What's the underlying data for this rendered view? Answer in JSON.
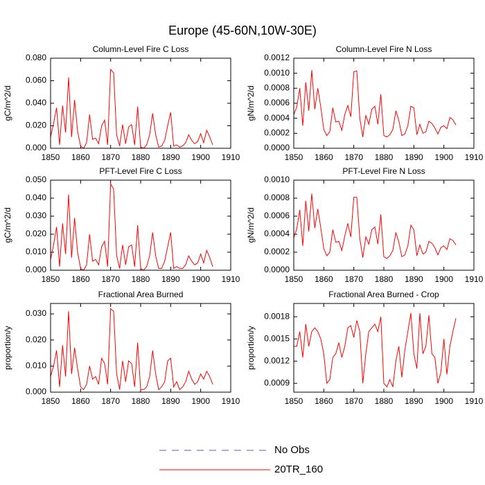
{
  "title": "Europe (45-60N,10W-30E)",
  "legend": [
    {
      "name": "No Obs",
      "color": "#5a5ac8",
      "dash": true
    },
    {
      "name": "20TR_160",
      "color": "#ff0000",
      "dash": false
    }
  ],
  "chart_data": [
    {
      "type": "line",
      "title": "Column-Level Fire C Loss",
      "y_label": "gC/m^2/d",
      "x": [
        1850,
        1851,
        1852,
        1853,
        1854,
        1855,
        1856,
        1857,
        1858,
        1859,
        1860,
        1861,
        1862,
        1863,
        1864,
        1865,
        1866,
        1867,
        1868,
        1869,
        1870,
        1871,
        1872,
        1873,
        1874,
        1875,
        1876,
        1877,
        1878,
        1879,
        1880,
        1881,
        1882,
        1883,
        1884,
        1885,
        1886,
        1887,
        1888,
        1889,
        1890,
        1891,
        1892,
        1893,
        1894,
        1895,
        1896,
        1897,
        1898,
        1899,
        1900,
        1901,
        1902,
        1903,
        1904
      ],
      "series": [
        {
          "color": "#ff0000",
          "values": [
            0.01,
            0.022,
            0.036,
            0.003,
            0.038,
            0.014,
            0.063,
            0.01,
            0.043,
            0.015,
            0.002,
            0.0,
            0.005,
            0.03,
            0.008,
            0.009,
            0.004,
            0.02,
            0.025,
            0.003,
            0.07,
            0.067,
            0.012,
            0.002,
            0.021,
            0.004,
            0.019,
            0.021,
            0.003,
            0.037,
            0.001,
            0.0,
            0.003,
            0.012,
            0.031,
            0.012,
            0.001,
            0.002,
            0.007,
            0.02,
            0.032,
            0.002,
            0.003,
            0.001,
            0.002,
            0.005,
            0.012,
            0.007,
            0.004,
            0.006,
            0.013,
            0.005,
            0.016,
            0.01,
            0.003
          ]
        }
      ],
      "xlim": [
        1850,
        1910
      ],
      "xticks": [
        1850,
        1860,
        1870,
        1880,
        1890,
        1900,
        1910
      ],
      "ylim": [
        0,
        0.08
      ],
      "yticks": [
        {
          "value": 0,
          "label": "0.000"
        },
        {
          "value": 0.02,
          "label": "0.020"
        },
        {
          "value": 0.04,
          "label": "0.040"
        },
        {
          "value": 0.06,
          "label": "0.060"
        },
        {
          "value": 0.08,
          "label": "0.080"
        }
      ]
    },
    {
      "type": "line",
      "title": "Column-Level Fire N Loss",
      "y_label": "gN/m^2/d",
      "x": [
        1850,
        1851,
        1852,
        1853,
        1854,
        1855,
        1856,
        1857,
        1858,
        1859,
        1860,
        1861,
        1862,
        1863,
        1864,
        1865,
        1866,
        1867,
        1868,
        1869,
        1870,
        1871,
        1872,
        1873,
        1874,
        1875,
        1876,
        1877,
        1878,
        1879,
        1880,
        1881,
        1882,
        1883,
        1884,
        1885,
        1886,
        1887,
        1888,
        1889,
        1890,
        1891,
        1892,
        1893,
        1894,
        1895,
        1896,
        1897,
        1898,
        1899,
        1900,
        1901,
        1902,
        1903,
        1904
      ],
      "series": [
        {
          "color": "#ff0000",
          "values": [
            0.00045,
            0.00055,
            0.0008,
            0.0003,
            0.00088,
            0.0005,
            0.00104,
            0.00052,
            0.0008,
            0.00055,
            0.00025,
            0.00017,
            0.00022,
            0.00054,
            0.00035,
            0.00036,
            0.00024,
            0.00045,
            0.00057,
            0.00042,
            0.00102,
            0.00103,
            0.0004,
            0.00015,
            0.00044,
            0.00032,
            0.00052,
            0.00056,
            0.00032,
            0.00072,
            0.00017,
            0.00015,
            0.00018,
            0.00025,
            0.0005,
            0.00037,
            0.00017,
            0.00019,
            0.0003,
            0.00056,
            0.00054,
            0.00018,
            0.00032,
            0.0002,
            0.00022,
            0.00036,
            0.00033,
            0.00027,
            0.00019,
            0.00028,
            0.0003,
            0.00026,
            0.00041,
            0.00038,
            0.00031
          ]
        }
      ],
      "xlim": [
        1850,
        1910
      ],
      "xticks": [
        1850,
        1860,
        1870,
        1880,
        1890,
        1900,
        1910
      ],
      "ylim": [
        0,
        0.0012
      ],
      "yticks": [
        {
          "value": 0,
          "label": "0.0000"
        },
        {
          "value": 0.0002,
          "label": "0.0002"
        },
        {
          "value": 0.0004,
          "label": "0.0004"
        },
        {
          "value": 0.0006,
          "label": "0.0006"
        },
        {
          "value": 0.0008,
          "label": "0.0008"
        },
        {
          "value": 0.001,
          "label": "0.0010"
        },
        {
          "value": 0.0012,
          "label": "0.0012"
        }
      ]
    },
    {
      "type": "line",
      "title": "PFT-Level Fire C Loss",
      "y_label": "gC/m^2/d",
      "x": [
        1850,
        1851,
        1852,
        1853,
        1854,
        1855,
        1856,
        1857,
        1858,
        1859,
        1860,
        1861,
        1862,
        1863,
        1864,
        1865,
        1866,
        1867,
        1868,
        1869,
        1870,
        1871,
        1872,
        1873,
        1874,
        1875,
        1876,
        1877,
        1878,
        1879,
        1880,
        1881,
        1882,
        1883,
        1884,
        1885,
        1886,
        1887,
        1888,
        1889,
        1890,
        1891,
        1892,
        1893,
        1894,
        1895,
        1896,
        1897,
        1898,
        1899,
        1900,
        1901,
        1902,
        1903,
        1904
      ],
      "series": [
        {
          "color": "#ff0000",
          "values": [
            0.006,
            0.014,
            0.024,
            0.002,
            0.026,
            0.009,
            0.042,
            0.007,
            0.029,
            0.01,
            0.001,
            0.0,
            0.003,
            0.02,
            0.005,
            0.006,
            0.003,
            0.013,
            0.016,
            0.002,
            0.048,
            0.045,
            0.008,
            0.001,
            0.014,
            0.003,
            0.013,
            0.014,
            0.002,
            0.025,
            0.001,
            0.0,
            0.002,
            0.008,
            0.021,
            0.008,
            0.001,
            0.001,
            0.005,
            0.013,
            0.021,
            0.001,
            0.002,
            0.001,
            0.001,
            0.003,
            0.008,
            0.005,
            0.003,
            0.004,
            0.009,
            0.004,
            0.011,
            0.007,
            0.002
          ]
        }
      ],
      "xlim": [
        1850,
        1910
      ],
      "xticks": [
        1850,
        1860,
        1870,
        1880,
        1890,
        1900,
        1910
      ],
      "ylim": [
        0,
        0.05
      ],
      "yticks": [
        {
          "value": 0,
          "label": "0.000"
        },
        {
          "value": 0.01,
          "label": "0.010"
        },
        {
          "value": 0.02,
          "label": "0.020"
        },
        {
          "value": 0.03,
          "label": "0.030"
        },
        {
          "value": 0.04,
          "label": "0.040"
        },
        {
          "value": 0.05,
          "label": "0.050"
        }
      ]
    },
    {
      "type": "line",
      "title": "PFT-Level Fire N Loss",
      "y_label": "gN/m^2/d",
      "x": [
        1850,
        1851,
        1852,
        1853,
        1854,
        1855,
        1856,
        1857,
        1858,
        1859,
        1860,
        1861,
        1862,
        1863,
        1864,
        1865,
        1866,
        1867,
        1868,
        1869,
        1870,
        1871,
        1872,
        1873,
        1874,
        1875,
        1876,
        1877,
        1878,
        1879,
        1880,
        1881,
        1882,
        1883,
        1884,
        1885,
        1886,
        1887,
        1888,
        1889,
        1890,
        1891,
        1892,
        1893,
        1894,
        1895,
        1896,
        1897,
        1898,
        1899,
        1900,
        1901,
        1902,
        1903,
        1904
      ],
      "series": [
        {
          "color": "#ff0000",
          "values": [
            0.00036,
            0.00046,
            0.00067,
            0.00027,
            0.00077,
            0.00043,
            0.00085,
            0.00047,
            0.00068,
            0.00047,
            0.00024,
            0.00016,
            0.0002,
            0.00045,
            0.00031,
            0.00032,
            0.00022,
            0.00038,
            0.00052,
            0.00037,
            0.00081,
            0.00081,
            0.00035,
            0.00014,
            0.00037,
            0.00029,
            0.00045,
            0.00048,
            0.00029,
            0.00062,
            0.00015,
            0.00013,
            0.00016,
            0.00022,
            0.00042,
            0.00031,
            0.00015,
            0.00017,
            0.00027,
            0.0005,
            0.00045,
            0.00016,
            0.00028,
            0.00018,
            0.0002,
            0.00032,
            0.0003,
            0.00025,
            0.00017,
            0.00025,
            0.00027,
            0.00023,
            0.00035,
            0.00033,
            0.00028
          ]
        }
      ],
      "xlim": [
        1850,
        1910
      ],
      "xticks": [
        1850,
        1860,
        1870,
        1880,
        1890,
        1900,
        1910
      ],
      "ylim": [
        0,
        0.001
      ],
      "yticks": [
        {
          "value": 0,
          "label": "0.0000"
        },
        {
          "value": 0.0002,
          "label": "0.0002"
        },
        {
          "value": 0.0004,
          "label": "0.0004"
        },
        {
          "value": 0.0006,
          "label": "0.0006"
        },
        {
          "value": 0.0008,
          "label": "0.0008"
        },
        {
          "value": 0.001,
          "label": "0.0010"
        }
      ]
    },
    {
      "type": "line",
      "title": "Fractional Area Burned",
      "y_label": "proportion/y",
      "x": [
        1850,
        1851,
        1852,
        1853,
        1854,
        1855,
        1856,
        1857,
        1858,
        1859,
        1860,
        1861,
        1862,
        1863,
        1864,
        1865,
        1866,
        1867,
        1868,
        1869,
        1870,
        1871,
        1872,
        1873,
        1874,
        1875,
        1876,
        1877,
        1878,
        1879,
        1880,
        1881,
        1882,
        1883,
        1884,
        1885,
        1886,
        1887,
        1888,
        1889,
        1890,
        1891,
        1892,
        1893,
        1894,
        1895,
        1896,
        1897,
        1898,
        1899,
        1900,
        1901,
        1902,
        1903,
        1904
      ],
      "series": [
        {
          "color": "#ff0000",
          "values": [
            0.006,
            0.01,
            0.016,
            0.002,
            0.018,
            0.006,
            0.031,
            0.007,
            0.017,
            0.009,
            0.002,
            0.001,
            0.003,
            0.01,
            0.005,
            0.006,
            0.003,
            0.013,
            0.011,
            0.003,
            0.032,
            0.031,
            0.007,
            0.001,
            0.012,
            0.004,
            0.012,
            0.011,
            0.002,
            0.019,
            0.001,
            0.001,
            0.002,
            0.006,
            0.016,
            0.007,
            0.001,
            0.002,
            0.004,
            0.012,
            0.013,
            0.002,
            0.004,
            0.001,
            0.002,
            0.004,
            0.008,
            0.005,
            0.003,
            0.004,
            0.007,
            0.005,
            0.008,
            0.006,
            0.003
          ]
        }
      ],
      "xlim": [
        1850,
        1910
      ],
      "xticks": [
        1850,
        1860,
        1870,
        1880,
        1890,
        1900,
        1910
      ],
      "ylim": [
        0,
        0.034
      ],
      "yticks": [
        {
          "value": 0,
          "label": "0.000"
        },
        {
          "value": 0.01,
          "label": "0.010"
        },
        {
          "value": 0.02,
          "label": "0.020"
        },
        {
          "value": 0.03,
          "label": "0.030"
        }
      ]
    },
    {
      "type": "line",
      "title": "Fractional Area Burned - Crop",
      "y_label": "proportion/y",
      "x": [
        1850,
        1851,
        1852,
        1853,
        1854,
        1855,
        1856,
        1857,
        1858,
        1859,
        1860,
        1861,
        1862,
        1863,
        1864,
        1865,
        1866,
        1867,
        1868,
        1869,
        1870,
        1871,
        1872,
        1873,
        1874,
        1875,
        1876,
        1877,
        1878,
        1879,
        1880,
        1881,
        1882,
        1883,
        1884,
        1885,
        1886,
        1887,
        1888,
        1889,
        1890,
        1891,
        1892,
        1893,
        1894,
        1895,
        1896,
        1897,
        1898,
        1899,
        1900,
        1901,
        1902,
        1903,
        1904
      ],
      "series": [
        {
          "color": "#ff0000",
          "values": [
            0.0014,
            0.0014,
            0.0016,
            0.00125,
            0.0017,
            0.0014,
            0.0016,
            0.00165,
            0.0016,
            0.0015,
            0.0013,
            0.0009,
            0.00095,
            0.00125,
            0.0013,
            0.00145,
            0.00125,
            0.0014,
            0.00165,
            0.00168,
            0.00152,
            0.00175,
            0.0016,
            0.0009,
            0.0013,
            0.0016,
            0.00165,
            0.0017,
            0.0016,
            0.0018,
            0.0009,
            0.00085,
            0.00095,
            0.00085,
            0.0012,
            0.0014,
            0.00098,
            0.00135,
            0.0016,
            0.00185,
            0.0013,
            0.0011,
            0.00185,
            0.0013,
            0.0014,
            0.00182,
            0.0013,
            0.00125,
            0.0009,
            0.00105,
            0.0015,
            0.00102,
            0.0014,
            0.0016,
            0.00178
          ]
        }
      ],
      "xlim": [
        1850,
        1910
      ],
      "xticks": [
        1850,
        1860,
        1870,
        1880,
        1890,
        1900,
        1910
      ],
      "ylim": [
        0.00078,
        0.00198
      ],
      "yticks": [
        {
          "value": 0.0009,
          "label": "0.0009"
        },
        {
          "value": 0.0012,
          "label": "0.0012"
        },
        {
          "value": 0.0015,
          "label": "0.0015"
        },
        {
          "value": 0.0018,
          "label": "0.0018"
        }
      ]
    }
  ]
}
